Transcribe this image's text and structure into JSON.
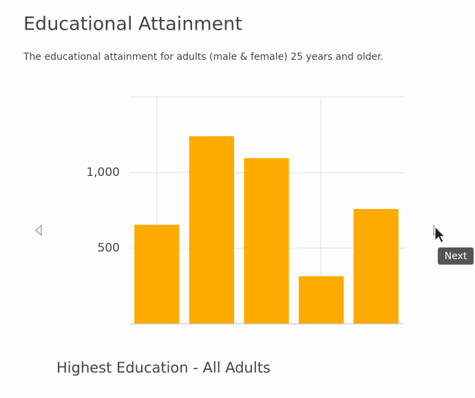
{
  "chart_data": {
    "type": "bar",
    "title": "Educational Attainment",
    "subtitle": "The educational attainment for adults (male & female) 25 years and older.",
    "x_label": "Highest Education - All Adults",
    "categories": [
      null,
      null,
      null,
      null,
      null
    ],
    "values": [
      655,
      1240,
      1095,
      314,
      759
    ],
    "color": "#ffaa00",
    "ylim": [
      0,
      1500
    ],
    "yticks": [
      500,
      {
        "value": 1000,
        "label": "1,000"
      }
    ],
    "grid": true
  },
  "navigation": {
    "next_tooltip": "Next"
  }
}
